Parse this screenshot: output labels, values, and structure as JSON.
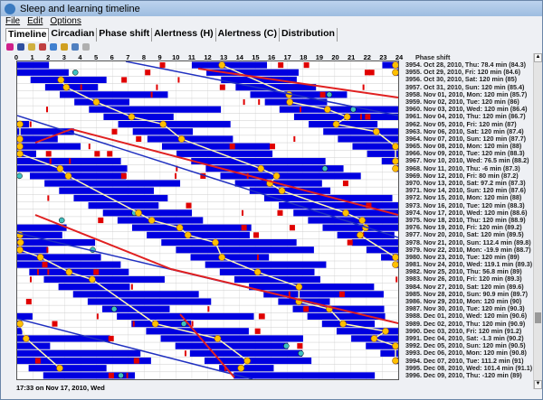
{
  "window": {
    "title": "Sleep and learning timeline"
  },
  "menu": [
    "File",
    "Edit",
    "Options"
  ],
  "tabs": [
    {
      "label": "Timeline",
      "active": true
    },
    {
      "label": "Circadian"
    },
    {
      "label": "Phase shift"
    },
    {
      "label": "Alertness (H)"
    },
    {
      "label": "Alertness (C)"
    },
    {
      "label": "Distribution"
    }
  ],
  "toolbar": [
    {
      "icon": "record-icon",
      "color": "#d0208a"
    },
    {
      "icon": "sleep-icon",
      "color": "#3050a0"
    },
    {
      "icon": "mail-icon",
      "color": "#d0b040"
    },
    {
      "icon": "calendar-icon",
      "color": "#c04040"
    },
    {
      "icon": "info-icon",
      "color": "#4080d0"
    },
    {
      "icon": "wand-icon",
      "color": "#d0a020"
    },
    {
      "icon": "save-icon",
      "color": "#5080c0"
    },
    {
      "icon": "folder-icon",
      "color": "#b0b0b0"
    }
  ],
  "hours": [
    "0",
    "1",
    "2",
    "3",
    "4",
    "5",
    "6",
    "7",
    "8",
    "9",
    "10",
    "11",
    "12",
    "13",
    "14",
    "15",
    "16",
    "17",
    "18",
    "19",
    "20",
    "21",
    "22",
    "23",
    "24"
  ],
  "list": {
    "header": "Phase shift",
    "items": [
      "3954. Oct 28, 2010, Thu: 78.4 min (84.3)",
      "3955. Oct 29, 2010, Fri: 120 min (84.6)",
      "3956. Oct 30, 2010, Sat: 120 min (85)",
      "3957. Oct 31, 2010, Sun: 120 min (85.4)",
      "3958. Nov 01, 2010, Mon: 120 min (85.7)",
      "3959. Nov 02, 2010, Tue: 120 min (86)",
      "3960. Nov 03, 2010, Wed: 120 min (86.4)",
      "3961. Nov 04, 2010, Thu: 120 min (86.7)",
      "3962. Nov 05, 2010, Fri: 120 min (87)",
      "3963. Nov 06, 2010, Sat: 120 min (87.4)",
      "3964. Nov 07, 2010, Sun: 120 min (87.7)",
      "3965. Nov 08, 2010, Mon: 120 min (88)",
      "3966. Nov 09, 2010, Tue: 120 min (88.3)",
      "3967. Nov 10, 2010, Wed: 76.5 min (88.2)",
      "3968. Nov 11, 2010, Thu: -6 min (87.3)",
      "3969. Nov 12, 2010, Fri: 80 min (87.2)",
      "3970. Nov 13, 2010, Sat: 97.2 min (87.3)",
      "3971. Nov 14, 2010, Sun: 120 min (87.6)",
      "3972. Nov 15, 2010, Mon: 120 min (88)",
      "3973. Nov 16, 2010, Tue: 120 min (88.3)",
      "3974. Nov 17, 2010, Wed: 120 min (88.6)",
      "3975. Nov 18, 2010, Thu: 120 min (88.9)",
      "3976. Nov 19, 2010, Fri: 120 min (89.2)",
      "3977. Nov 20, 2010, Sat: 120 min (89.5)",
      "3978. Nov 21, 2010, Sun: 112.4 min (89.8)",
      "3979. Nov 22, 2010, Mon: -19.9 min (88.7)",
      "3980. Nov 23, 2010, Tue: 120 min (89)",
      "3981. Nov 24, 2010, Wed: 119.1 min (89.3)",
      "3982. Nov 25, 2010, Thu: 56.8 min (89)",
      "3983. Nov 26, 2010, Fri: 120 min (89.3)",
      "3984. Nov 27, 2010, Sat: 120 min (89.6)",
      "3985. Nov 28, 2010, Sun: 90.9 min (89.7)",
      "3986. Nov 29, 2010, Mon: 120 min (90)",
      "3987. Nov 30, 2010, Tue: 120 min (90.3)",
      "3988. Dec 01, 2010, Wed: 120 min (90.6)",
      "3989. Dec 02, 2010, Thu: 120 min (90.9)",
      "3990. Dec 03, 2010, Fri: 120 min (91.2)",
      "3991. Dec 04, 2010, Sat: -1.3 min (90.2)",
      "3992. Dec 05, 2010, Sun: 120 min (90.5)",
      "3993. Dec 06, 2010, Mon: 120 min (90.8)",
      "3994. Dec 07, 2010, Tue: 111.2 min (91)",
      "3995. Dec 08, 2010, Wed: 101.4 min (91.1)",
      "3996. Dec 09, 2010, Thu: -120 min (89)"
    ]
  },
  "status": "17:33 on Nov 17, 2010, Wed",
  "colors": {
    "sleep": "#0000e0",
    "event": "#e00000",
    "phase_line": "#e02020",
    "trend_line": "#2030c0",
    "marker": "#ffc000",
    "cyan_marker": "#40c0c0"
  }
}
